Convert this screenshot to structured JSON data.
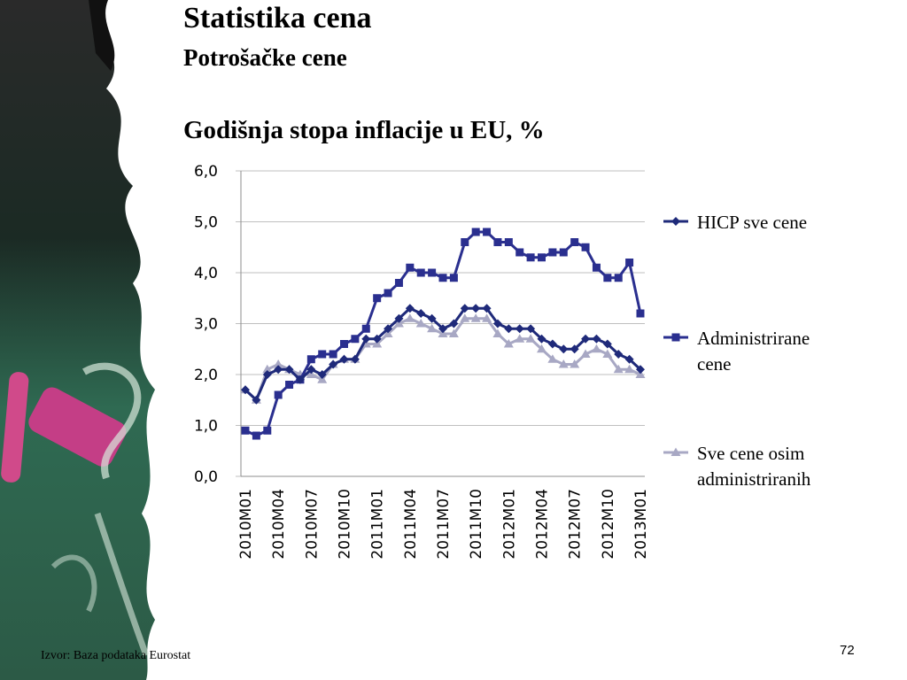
{
  "slide": {
    "title": "Statistika cena",
    "subtitle": "Potrošačke cene",
    "source": "Izvor: Baza podataka Eurostat",
    "page_number": "72"
  },
  "chart_data": {
    "type": "line",
    "title": "Godišnja stopa inflacije u EU, %",
    "xlabel": "",
    "ylabel": "",
    "ylim": [
      0,
      6
    ],
    "yticks": [
      "0,0",
      "1,0",
      "2,0",
      "3,0",
      "4,0",
      "5,0",
      "6,0"
    ],
    "xticks": [
      "2010M01",
      "2010M04",
      "2010M07",
      "2010M10",
      "2011M01",
      "2011M04",
      "2011M07",
      "2011M10",
      "2012M01",
      "2012M04",
      "2012M07",
      "2012M10",
      "2013M01"
    ],
    "x": [
      "2010M01",
      "2010M02",
      "2010M03",
      "2010M04",
      "2010M05",
      "2010M06",
      "2010M07",
      "2010M08",
      "2010M09",
      "2010M10",
      "2010M11",
      "2010M12",
      "2011M01",
      "2011M02",
      "2011M03",
      "2011M04",
      "2011M05",
      "2011M06",
      "2011M07",
      "2011M08",
      "2011M09",
      "2011M10",
      "2011M11",
      "2011M12",
      "2012M01",
      "2012M02",
      "2012M03",
      "2012M04",
      "2012M05",
      "2012M06",
      "2012M07",
      "2012M08",
      "2012M09",
      "2012M10",
      "2012M11",
      "2012M12",
      "2013M01"
    ],
    "grid": "horizontal",
    "legend_position": "right",
    "series": [
      {
        "name": "HICP sve cene",
        "color": "#1f2a7a",
        "marker": "diamond",
        "values": [
          1.7,
          1.5,
          2.0,
          2.1,
          2.1,
          1.9,
          2.1,
          2.0,
          2.2,
          2.3,
          2.3,
          2.7,
          2.7,
          2.9,
          3.1,
          3.3,
          3.2,
          3.1,
          2.9,
          3.0,
          3.3,
          3.3,
          3.3,
          3.0,
          2.9,
          2.9,
          2.9,
          2.7,
          2.6,
          2.5,
          2.5,
          2.7,
          2.7,
          2.6,
          2.4,
          2.3,
          2.1
        ]
      },
      {
        "name": "Administrirane cene",
        "color": "#2a2f8f",
        "marker": "square",
        "values": [
          0.9,
          0.8,
          0.9,
          1.6,
          1.8,
          1.9,
          2.3,
          2.4,
          2.4,
          2.6,
          2.7,
          2.9,
          3.5,
          3.6,
          3.8,
          4.1,
          4.0,
          4.0,
          3.9,
          3.9,
          4.6,
          4.8,
          4.8,
          4.6,
          4.6,
          4.4,
          4.3,
          4.3,
          4.4,
          4.4,
          4.6,
          4.5,
          4.1,
          3.9,
          3.9,
          4.2,
          3.2
        ]
      },
      {
        "name": "Sve cene osim administriranih",
        "color": "#a8a8c4",
        "marker": "triangle",
        "values": [
          1.7,
          1.5,
          2.1,
          2.2,
          2.1,
          2.0,
          2.0,
          1.9,
          2.2,
          2.3,
          2.3,
          2.6,
          2.6,
          2.8,
          3.0,
          3.1,
          3.0,
          2.9,
          2.8,
          2.8,
          3.1,
          3.1,
          3.1,
          2.8,
          2.6,
          2.7,
          2.7,
          2.5,
          2.3,
          2.2,
          2.2,
          2.4,
          2.5,
          2.4,
          2.1,
          2.1,
          2.0
        ]
      }
    ],
    "legend_labels": [
      [
        "HICP sve cene"
      ],
      [
        "Administrirane",
        "cene"
      ],
      [
        "Sve cene osim",
        "administriranih"
      ]
    ]
  }
}
